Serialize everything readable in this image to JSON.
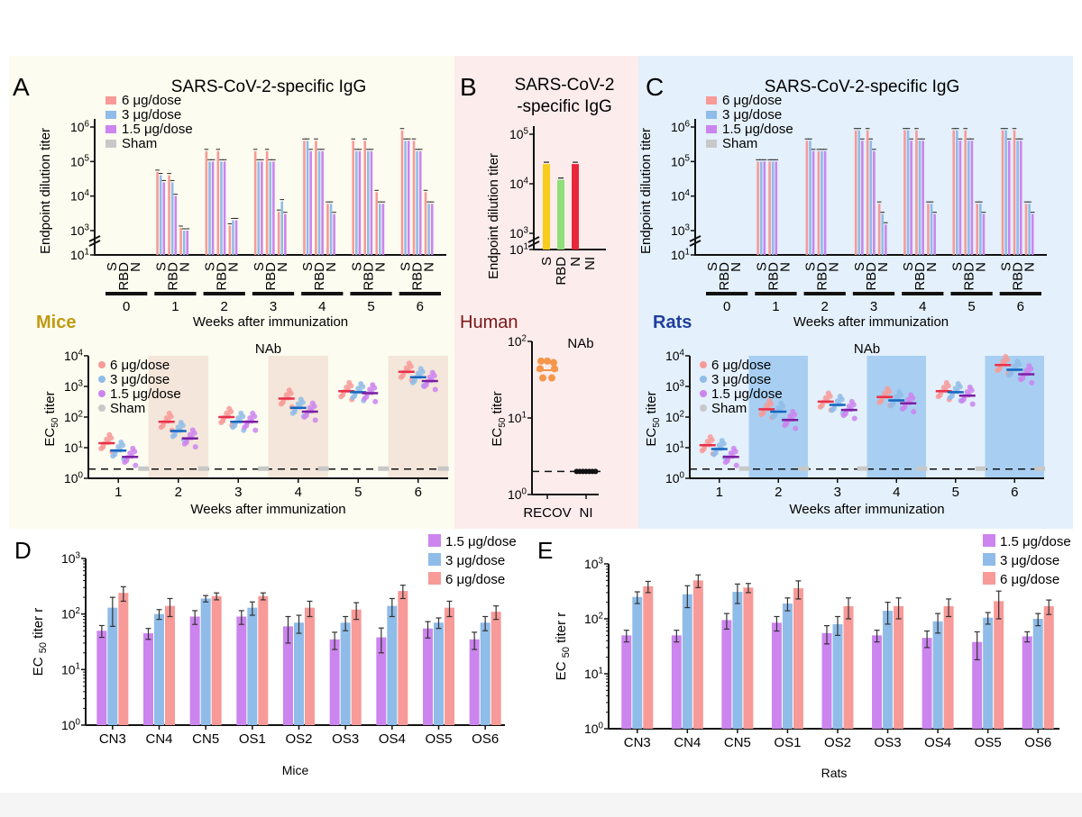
{
  "colors": {
    "c6": "#f79a98",
    "c3": "#8fbce8",
    "c15": "#cc84ee",
    "sham": "#c8c8c8",
    "red_mean": "#e8304a",
    "blue_mean": "#1565c0",
    "purple_mean": "#7a1fa2",
    "bgA": "#fcfcf0",
    "bgB": "#fcecec",
    "bgC": "#e4f0fb",
    "shadeA": "#f4e6da",
    "shadeC": "#a8cff2",
    "mice_label": "#c09a12",
    "human_label": "#7a1616",
    "rats_label": "#1f3f9c",
    "humanS": "#f7cc1c",
    "humanRBD": "#8fe07a",
    "humanN": "#e8283a",
    "humanDot": "#f5964a"
  },
  "panels": {
    "A": {
      "letter": "A",
      "title": "SARS-CoV-2-specific IgG",
      "group": "Mice"
    },
    "B": {
      "letter": "B",
      "title_lines": [
        "SARS-CoV-2",
        "-specific IgG"
      ],
      "group": "Human"
    },
    "C": {
      "letter": "C",
      "title": "SARS-CoV-2-specific IgG",
      "group": "Rats"
    },
    "D": {
      "letter": "D"
    },
    "E": {
      "letter": "E"
    }
  },
  "chart_data": [
    {
      "id": "A_top",
      "type": "bar",
      "title": "SARS-CoV-2-specific IgG",
      "ylabel": "Endpoint dilution titer",
      "xlabel": "Weeks after immunization",
      "yscale": "log",
      "ylim": [
        10,
        1000000
      ],
      "ytick_labels": [
        "10^1",
        "10^3",
        "10^4",
        "10^5",
        "10^6"
      ],
      "legend": [
        "6 μg/dose",
        "3 μg/dose",
        "1.5 μg/dose",
        "Sham"
      ],
      "antigens": [
        "S",
        "RBD",
        "N"
      ],
      "weeks": [
        "0",
        "1",
        "2",
        "3",
        "4",
        "5",
        "6"
      ],
      "series": [
        {
          "name": "6 μg/dose",
          "values": [
            [
              10,
              10,
              10
            ],
            [
              50000,
              40000,
              1200
            ],
            [
              200000,
              200000,
              1400
            ],
            [
              200000,
              200000,
              3500
            ],
            [
              400000,
              400000,
              6000
            ],
            [
              400000,
              400000,
              13000
            ],
            [
              800000,
              400000,
              13000
            ]
          ]
        },
        {
          "name": "3 μg/dose",
          "values": [
            [
              10,
              10,
              10
            ],
            [
              40000,
              25000,
              1000
            ],
            [
              100000,
              100000,
              2000
            ],
            [
              100000,
              100000,
              7000
            ],
            [
              400000,
              200000,
              6000
            ],
            [
              200000,
              200000,
              6000
            ],
            [
              400000,
              200000,
              6000
            ]
          ]
        },
        {
          "name": "1.5 μg/dose",
          "values": [
            [
              10,
              10,
              10
            ],
            [
              25000,
              10000,
              1000
            ],
            [
              100000,
              100000,
              2000
            ],
            [
              100000,
              100000,
              3000
            ],
            [
              200000,
              200000,
              3000
            ],
            [
              200000,
              200000,
              6000
            ],
            [
              400000,
              200000,
              6000
            ]
          ]
        }
      ]
    },
    {
      "id": "A_bottom",
      "type": "scatter",
      "title": "NAb",
      "ylabel": "EC50 titer",
      "xlabel": "Weeks after immunization",
      "yscale": "log",
      "ylim": [
        1,
        10000
      ],
      "cutoff": 2,
      "legend": [
        "6 μg/dose",
        "3 μg/dose",
        "1.5 μg/dose",
        "Sham"
      ],
      "weeks": [
        "1",
        "2",
        "3",
        "4",
        "5",
        "6"
      ],
      "means": {
        "6 μg/dose": [
          14,
          70,
          100,
          400,
          700,
          3000
        ],
        "3 μg/dose": [
          8,
          35,
          70,
          200,
          650,
          2000
        ],
        "1.5 μg/dose": [
          5,
          20,
          70,
          150,
          600,
          1500
        ]
      }
    },
    {
      "id": "B_top",
      "type": "bar",
      "title": "SARS-CoV-2-specific IgG",
      "ylabel": "Endpoint dilution titer",
      "yscale": "log",
      "ylim": [
        10,
        100000
      ],
      "ytick_labels": [
        "10^1",
        "10^3",
        "10^4",
        "10^5"
      ],
      "categories": [
        "S",
        "RBD",
        "N",
        "NI"
      ],
      "values": [
        25000,
        12000,
        25000,
        10
      ]
    },
    {
      "id": "B_bottom",
      "type": "scatter",
      "title": "NAb",
      "ylabel": "EC50 titer",
      "yscale": "log",
      "ylim": [
        1,
        100
      ],
      "cutoff": 2,
      "categories": [
        "RECOV",
        "NI"
      ],
      "means": [
        42,
        2
      ]
    },
    {
      "id": "C_top",
      "type": "bar",
      "title": "SARS-CoV-2-specific IgG",
      "ylabel": "Endpoint dilution titer",
      "xlabel": "Weeks after immunization",
      "yscale": "log",
      "ylim": [
        10,
        1000000
      ],
      "ytick_labels": [
        "10^1",
        "10^3",
        "10^4",
        "10^5",
        "10^6"
      ],
      "legend": [
        "6 μg/dose",
        "3 μg/dose",
        "1.5 μg/dose",
        "Sham"
      ],
      "antigens": [
        "S",
        "RBD",
        "N"
      ],
      "weeks": [
        "0",
        "1",
        "2",
        "3",
        "4",
        "5",
        "6"
      ],
      "series": [
        {
          "name": "6 μg/dose",
          "values": [
            [
              10,
              10,
              10
            ],
            [
              100000,
              100000,
              10
            ],
            [
              400000,
              200000,
              20
            ],
            [
              800000,
              800000,
              6000
            ],
            [
              800000,
              800000,
              6000
            ],
            [
              800000,
              800000,
              6000
            ],
            [
              800000,
              800000,
              6000
            ]
          ]
        },
        {
          "name": "3 μg/dose",
          "values": [
            [
              10,
              10,
              10
            ],
            [
              100000,
              100000,
              10
            ],
            [
              400000,
              200000,
              10
            ],
            [
              800000,
              400000,
              3000
            ],
            [
              800000,
              400000,
              6000
            ],
            [
              800000,
              400000,
              6000
            ],
            [
              800000,
              400000,
              6000
            ]
          ]
        },
        {
          "name": "1.5 μg/dose",
          "values": [
            [
              10,
              10,
              10
            ],
            [
              100000,
              100000,
              10
            ],
            [
              200000,
              200000,
              10
            ],
            [
              400000,
              200000,
              1500
            ],
            [
              400000,
              400000,
              3000
            ],
            [
              400000,
              400000,
              3000
            ],
            [
              400000,
              400000,
              3000
            ]
          ]
        }
      ]
    },
    {
      "id": "C_bottom",
      "type": "scatter",
      "title": "NAb",
      "ylabel": "EC50 titer",
      "xlabel": "Weeks after immunization",
      "yscale": "log",
      "ylim": [
        1,
        10000
      ],
      "cutoff": 2,
      "legend": [
        "6 μg/dose",
        "3 μg/dose",
        "1.5 μg/dose",
        "Sham"
      ],
      "weeks": [
        "1",
        "2",
        "3",
        "4",
        "5",
        "6"
      ],
      "means": {
        "6 μg/dose": [
          12,
          180,
          320,
          450,
          700,
          5000
        ],
        "3 μg/dose": [
          9,
          150,
          250,
          350,
          650,
          3500
        ],
        "1.5 μg/dose": [
          5,
          80,
          170,
          280,
          500,
          2500
        ]
      }
    },
    {
      "id": "D",
      "type": "bar",
      "xlabel": "Mice",
      "ylabel": "EC 50 titer",
      "yscale": "log",
      "ylim": [
        1,
        1000
      ],
      "categories": [
        "CN3",
        "CN4",
        "CN5",
        "OS1",
        "OS2",
        "OS3",
        "OS4",
        "OS5",
        "OS6"
      ],
      "legend": [
        "1.5 μg/dose",
        "3 μg/dose",
        "6 μg/dose"
      ],
      "series": [
        {
          "name": "1.5 μg/dose",
          "values": [
            50,
            45,
            90,
            90,
            60,
            35,
            38,
            55,
            35
          ],
          "err": [
            12,
            10,
            25,
            25,
            30,
            12,
            18,
            18,
            12
          ]
        },
        {
          "name": "3 μg/dose",
          "values": [
            130,
            100,
            190,
            130,
            70,
            70,
            140,
            70,
            70
          ],
          "err": [
            70,
            20,
            25,
            35,
            25,
            20,
            50,
            15,
            20
          ]
        },
        {
          "name": "6 μg/dose",
          "values": [
            240,
            140,
            210,
            210,
            130,
            120,
            260,
            130,
            110
          ],
          "err": [
            70,
            50,
            30,
            30,
            40,
            40,
            70,
            40,
            30
          ]
        }
      ]
    },
    {
      "id": "E",
      "type": "bar",
      "xlabel": "Rats",
      "ylabel": "EC 50 titer",
      "yscale": "log",
      "ylim": [
        1,
        1000
      ],
      "categories": [
        "CN3",
        "CN4",
        "CN5",
        "OS1",
        "OS2",
        "OS3",
        "OS4",
        "OS5",
        "OS6"
      ],
      "legend": [
        "1.5 μg/dose",
        "3 μg/dose",
        "6 μg/dose"
      ],
      "series": [
        {
          "name": "1.5 μg/dose",
          "values": [
            50,
            50,
            95,
            85,
            55,
            50,
            45,
            38,
            48
          ],
          "err": [
            12,
            12,
            30,
            25,
            20,
            12,
            15,
            20,
            10
          ]
        },
        {
          "name": "3 μg/dose",
          "values": [
            250,
            280,
            310,
            190,
            80,
            140,
            90,
            105,
            100
          ],
          "err": [
            60,
            120,
            120,
            50,
            30,
            60,
            35,
            25,
            25
          ]
        },
        {
          "name": "6 μg/dose",
          "values": [
            390,
            500,
            370,
            360,
            170,
            170,
            170,
            210,
            170
          ],
          "err": [
            90,
            130,
            70,
            130,
            70,
            70,
            60,
            110,
            50
          ]
        }
      ]
    }
  ]
}
